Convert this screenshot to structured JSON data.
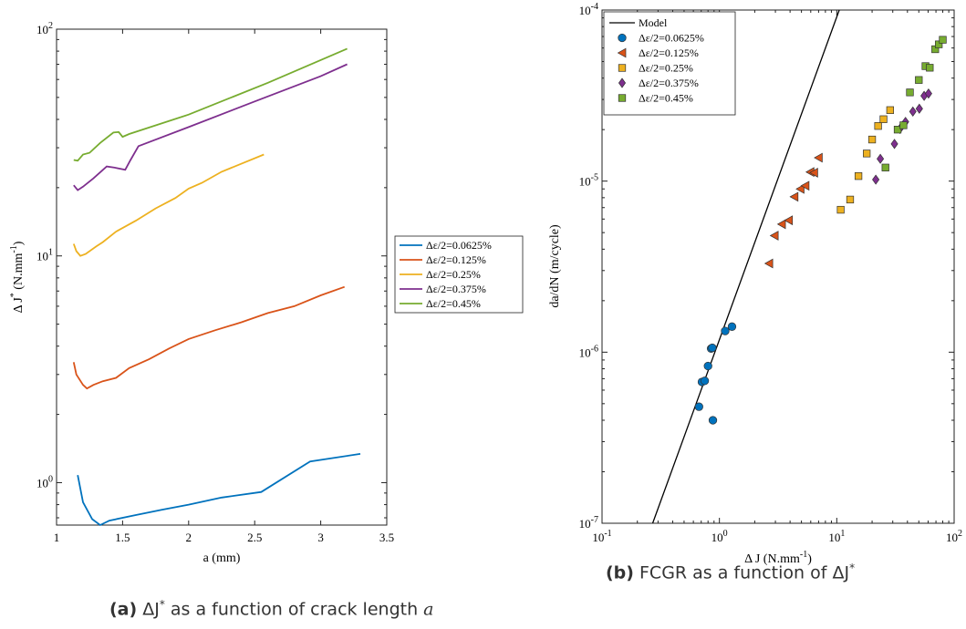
{
  "chart_data": [
    {
      "type": "line",
      "xlabel": "a (mm)",
      "ylabel_main": "Δ J",
      "ylabel_sup": "*",
      "ylabel_tail": " (N.mm",
      "ylabel_unitsup": "-1",
      "ylabel_close": ")",
      "xlim": [
        1,
        3.5
      ],
      "ylim": [
        0.65,
        100
      ],
      "yscale": "log",
      "grid": false,
      "legend_position": "outside-right",
      "x_ticks": [
        1,
        1.5,
        2,
        2.5,
        3,
        3.5
      ],
      "x_tick_labels": [
        "1",
        "1.5",
        "2",
        "2.5",
        "3",
        "3.5"
      ],
      "y_ticks": [
        1,
        10,
        100
      ],
      "y_tick_base": "10",
      "y_tick_exps": [
        "0",
        "1",
        "2"
      ],
      "series": [
        {
          "name": "Δε/2=0.0625%",
          "color": "#0072BD",
          "x": [
            1.16,
            1.2,
            1.27,
            1.33,
            1.4,
            1.6,
            1.8,
            2.0,
            2.25,
            2.55,
            2.92,
            3.3
          ],
          "y": [
            1.08,
            0.82,
            0.69,
            0.65,
            0.68,
            0.72,
            0.76,
            0.8,
            0.86,
            0.91,
            1.24,
            1.34
          ]
        },
        {
          "name": "Δε/2=0.125%",
          "color": "#D95319",
          "x": [
            1.13,
            1.15,
            1.2,
            1.23,
            1.28,
            1.35,
            1.45,
            1.55,
            1.7,
            1.85,
            2.0,
            2.2,
            2.4,
            2.6,
            2.8,
            3.0,
            3.18
          ],
          "y": [
            3.4,
            3.0,
            2.7,
            2.6,
            2.7,
            2.8,
            2.9,
            3.2,
            3.5,
            3.9,
            4.3,
            4.7,
            5.1,
            5.6,
            6.0,
            6.7,
            7.3
          ]
        },
        {
          "name": "Δε/2=0.25%",
          "color": "#EDB120",
          "x": [
            1.13,
            1.15,
            1.18,
            1.22,
            1.3,
            1.35,
            1.45,
            1.6,
            1.75,
            1.9,
            2.0,
            2.1,
            2.25,
            2.4,
            2.57
          ],
          "y": [
            11.3,
            10.5,
            10.0,
            10.2,
            11.0,
            11.5,
            12.8,
            14.3,
            16.2,
            18.0,
            19.8,
            21.0,
            23.5,
            25.5,
            28.0
          ]
        },
        {
          "name": "Δε/2=0.375%",
          "color": "#7E2F8E",
          "x": [
            1.13,
            1.16,
            1.2,
            1.28,
            1.38,
            1.44,
            1.52,
            1.56,
            1.62,
            2.0,
            2.5,
            3.0,
            3.2
          ],
          "y": [
            20.5,
            19.5,
            20.2,
            22.0,
            24.8,
            24.5,
            24.0,
            26.5,
            30.5,
            37.0,
            48.0,
            62.0,
            70.0
          ]
        },
        {
          "name": "Δε/2=0.45%",
          "color": "#77AC30",
          "x": [
            1.13,
            1.16,
            1.2,
            1.25,
            1.33,
            1.43,
            1.47,
            1.5,
            1.55,
            2.0,
            2.6,
            3.2
          ],
          "y": [
            26.5,
            26.3,
            28.0,
            28.5,
            31.5,
            35.0,
            35.2,
            33.5,
            34.5,
            42.0,
            58.0,
            82.0
          ]
        }
      ]
    },
    {
      "type": "scatter",
      "xlabel": "Δ J (N.mm",
      "xlabel_sup": "-1",
      "xlabel_close": ")",
      "ylabel": "da/dN (m/cycle)",
      "xscale": "log",
      "yscale": "log",
      "xlim": [
        0.1,
        100
      ],
      "ylim": [
        1e-07,
        0.0001
      ],
      "grid": false,
      "legend_position": "top-left",
      "x_tick_base": "10",
      "x_tick_exps": [
        "-1",
        "0",
        "1",
        "2"
      ],
      "y_tick_base": "10",
      "y_tick_exps": [
        "-7",
        "-6",
        "-5",
        "-4"
      ],
      "model": {
        "name": "Model",
        "color": "#000000",
        "x": [
          0.27,
          10.5
        ],
        "y": [
          1e-07,
          0.0001
        ]
      },
      "series": [
        {
          "name": "Δε/2=0.0625%",
          "color": "#0072BD",
          "marker": "circle",
          "x": [
            0.67,
            0.71,
            0.75,
            0.8,
            0.85,
            0.87,
            0.88,
            1.12,
            1.28
          ],
          "y": [
            4.8e-07,
            6.7e-07,
            6.8e-07,
            8.3e-07,
            1.05e-06,
            1.06e-06,
            4e-07,
            1.33e-06,
            1.41e-06
          ]
        },
        {
          "name": "Δε/2=0.125%",
          "color": "#D95319",
          "marker": "triangle-left",
          "x": [
            2.65,
            2.95,
            3.4,
            3.9,
            4.35,
            4.9,
            5.4,
            5.95,
            6.4,
            7.0
          ],
          "y": [
            3.3e-06,
            4.8e-06,
            5.6e-06,
            5.9e-06,
            8.1e-06,
            9e-06,
            9.4e-06,
            1.13e-05,
            1.12e-05,
            1.37e-05
          ]
        },
        {
          "name": "Δε/2=0.25%",
          "color": "#EDB120",
          "marker": "square",
          "x": [
            10.8,
            13.0,
            15.3,
            18.0,
            20.0,
            22.5,
            25.0,
            28.5
          ],
          "y": [
            6.8e-06,
            7.8e-06,
            1.07e-05,
            1.45e-05,
            1.75e-05,
            2.1e-05,
            2.3e-05,
            2.6e-05
          ]
        },
        {
          "name": "Δε/2=0.375%",
          "color": "#7E2F8E",
          "marker": "diamond",
          "x": [
            21.5,
            23.5,
            31.0,
            34.5,
            38.5,
            44.5,
            50.5,
            55.5,
            60.5
          ],
          "y": [
            1.02e-05,
            1.35e-05,
            1.65e-05,
            2.02e-05,
            2.22e-05,
            2.55e-05,
            2.65e-05,
            3.15e-05,
            3.25e-05
          ]
        },
        {
          "name": "Δε/2=0.45%",
          "color": "#77AC30",
          "marker": "square",
          "x": [
            26.0,
            33.0,
            37.0,
            42.0,
            50.0,
            57.0,
            62.0,
            69.0,
            74.0,
            80.0
          ],
          "y": [
            1.2e-05,
            2e-05,
            2.12e-05,
            3.3e-05,
            3.9e-05,
            4.7e-05,
            4.6e-05,
            5.9e-05,
            6.3e-05,
            6.7e-05
          ]
        }
      ]
    }
  ],
  "captions": {
    "a": {
      "label": "(a)",
      "sym": "ΔJ",
      "sup": "*",
      "text": " as a function of crack length ",
      "var": "a"
    },
    "b": {
      "label": "(b)",
      "text": " FCGR as a function of ",
      "sym": "ΔJ",
      "sup": "*"
    }
  }
}
